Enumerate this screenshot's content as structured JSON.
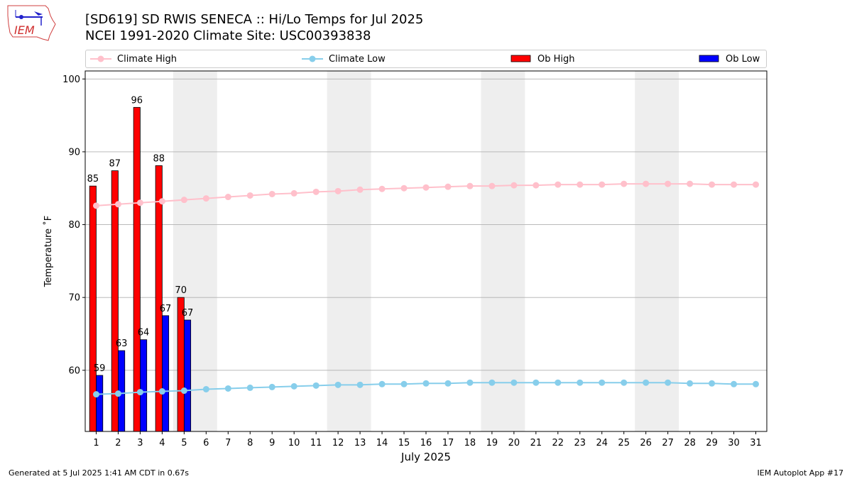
{
  "header": {
    "logo_text": "IEM",
    "title_line1": "[SD619] SD RWIS SENECA :: Hi/Lo Temps for Jul 2025",
    "title_line2": "NCEI 1991-2020 Climate Site: USC00393838"
  },
  "legend": {
    "climate_high": "Climate High",
    "climate_low": "Climate Low",
    "ob_high": "Ob High",
    "ob_low": "Ob Low"
  },
  "colors": {
    "climate_high": "#ffc0cb",
    "climate_low": "#87ceeb",
    "ob_high": "#ff0000",
    "ob_low": "#0000ff",
    "weekend_shade": "#eeeeee",
    "grid": "#b0b0b0"
  },
  "footer": {
    "left": "Generated at 5 Jul 2025 1:41 AM CDT in 0.67s",
    "right": "IEM Autoplot App #17"
  },
  "chart_data": {
    "type": "bar",
    "xlabel": "July 2025",
    "ylabel": "Temperature ˚F",
    "xlim": [
      0.5,
      31.5
    ],
    "ylim": [
      51.6,
      101.1
    ],
    "yticks": [
      60,
      70,
      80,
      90,
      100
    ],
    "grid": "horizontal",
    "legend_position": "top",
    "x": [
      1,
      2,
      3,
      4,
      5,
      6,
      7,
      8,
      9,
      10,
      11,
      12,
      13,
      14,
      15,
      16,
      17,
      18,
      19,
      20,
      21,
      22,
      23,
      24,
      25,
      26,
      27,
      28,
      29,
      30,
      31
    ],
    "weekend_days": [
      5,
      6,
      12,
      13,
      19,
      20,
      26,
      27
    ],
    "series": [
      {
        "name": "Ob High",
        "kind": "bar",
        "x": [
          1,
          2,
          3,
          4,
          5
        ],
        "values": [
          85.3,
          87.4,
          96.1,
          88.1,
          70.0
        ],
        "labels": [
          "85",
          "87",
          "96",
          "88",
          "70"
        ]
      },
      {
        "name": "Ob Low",
        "kind": "bar",
        "x": [
          1,
          2,
          3,
          4,
          5
        ],
        "values": [
          59.3,
          62.7,
          64.2,
          67.5,
          66.9
        ],
        "labels": [
          "59",
          "63",
          "64",
          "67",
          "67"
        ]
      },
      {
        "name": "Climate High",
        "kind": "line",
        "values": [
          82.6,
          82.8,
          83.0,
          83.2,
          83.4,
          83.6,
          83.8,
          84.0,
          84.2,
          84.3,
          84.5,
          84.6,
          84.8,
          84.9,
          85.0,
          85.1,
          85.2,
          85.3,
          85.3,
          85.4,
          85.4,
          85.5,
          85.5,
          85.5,
          85.6,
          85.6,
          85.6,
          85.6,
          85.5,
          85.5,
          85.5
        ]
      },
      {
        "name": "Climate Low",
        "kind": "line",
        "values": [
          56.7,
          56.8,
          57.0,
          57.1,
          57.2,
          57.4,
          57.5,
          57.6,
          57.7,
          57.8,
          57.9,
          58.0,
          58.0,
          58.1,
          58.1,
          58.2,
          58.2,
          58.3,
          58.3,
          58.3,
          58.3,
          58.3,
          58.3,
          58.3,
          58.3,
          58.3,
          58.3,
          58.2,
          58.2,
          58.1,
          58.1
        ]
      }
    ]
  }
}
